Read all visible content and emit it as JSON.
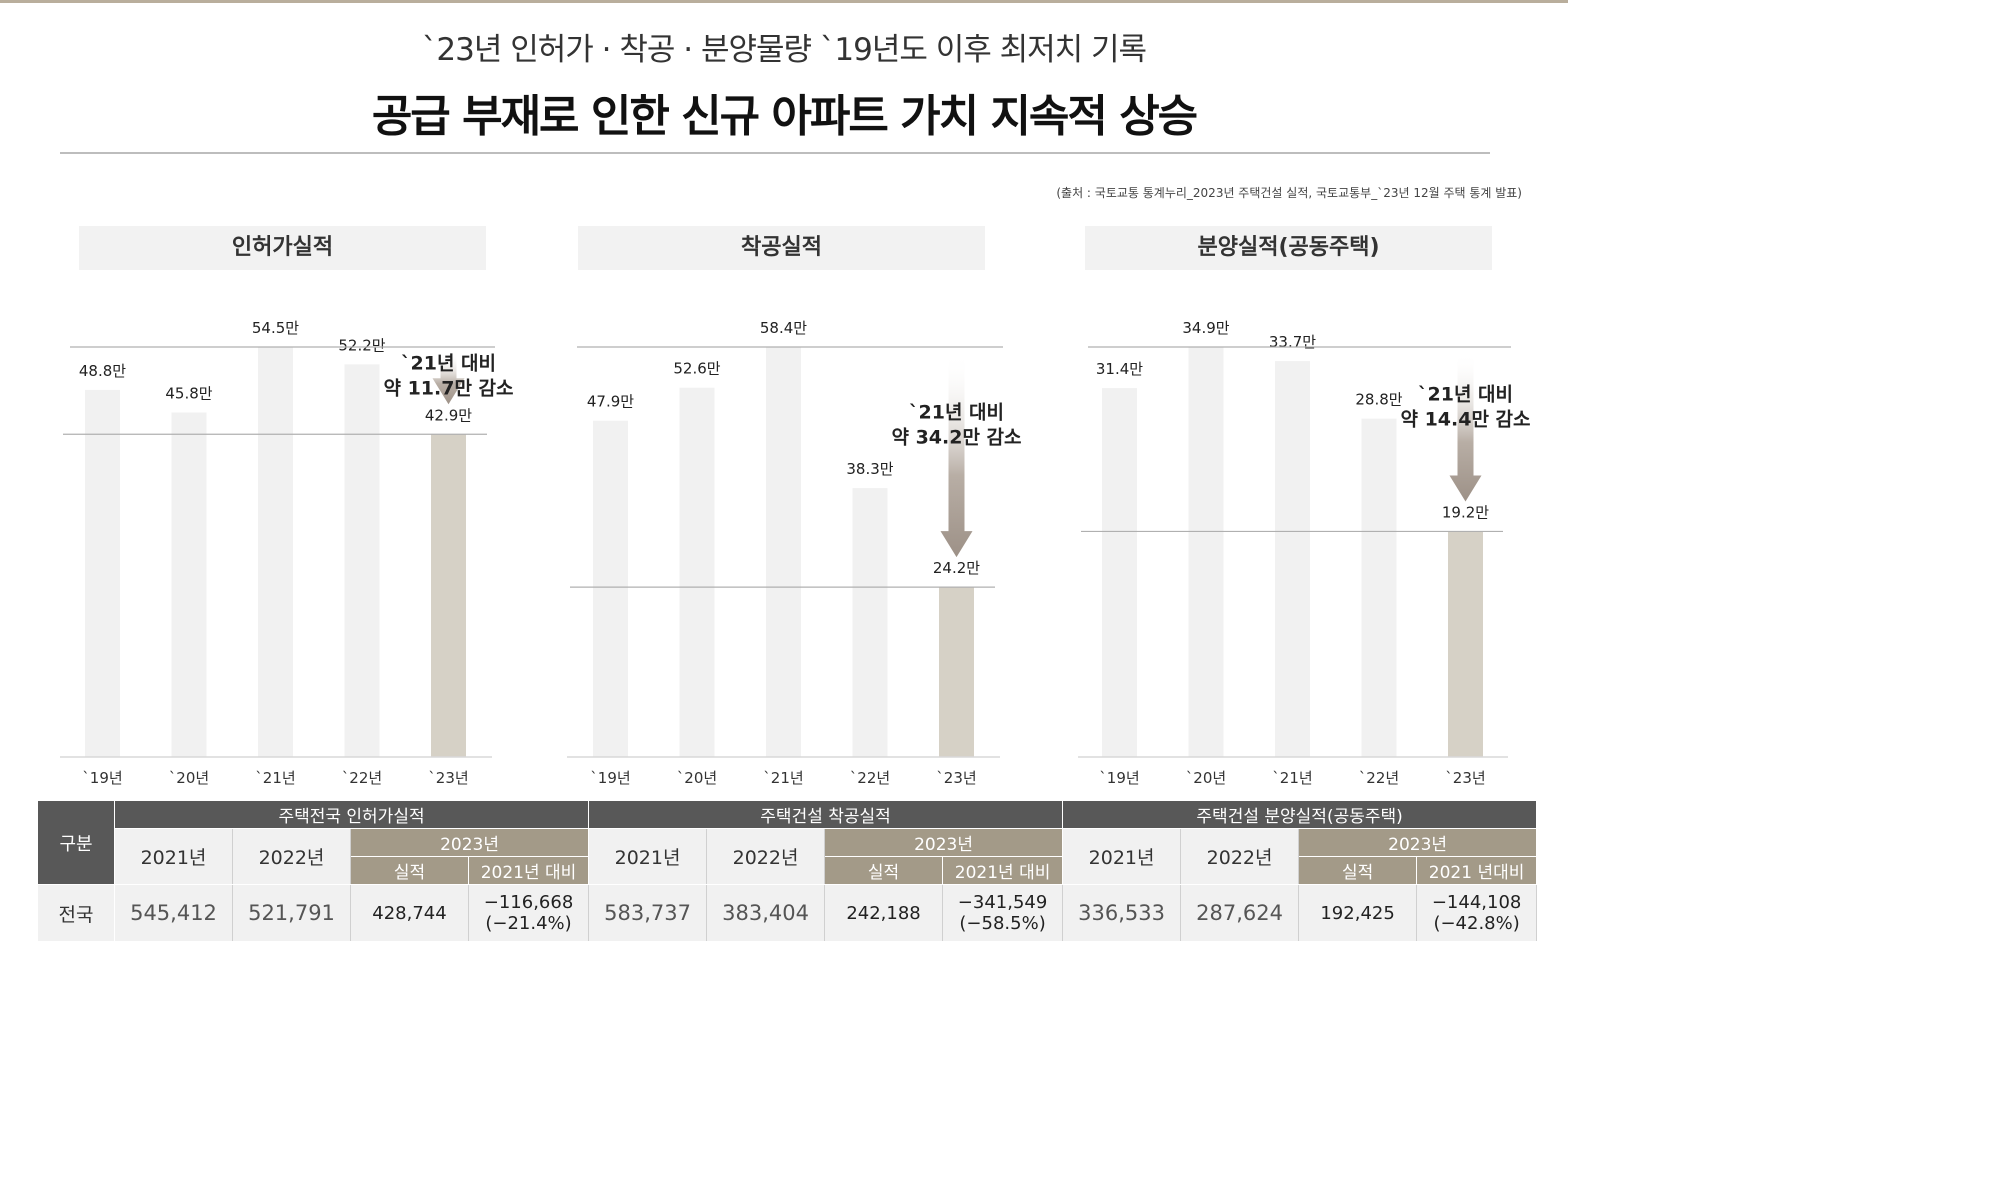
{
  "header": {
    "subtitle": "`23년 인허가 · 착공 · 분양물량 `19년도 이후 최저치 기록",
    "title": "공급 부재로 인한 신규 아파트 가치 지속적 상승",
    "source": "(출처 : 국토교통 통계누리_2023년 주택건설 실적, 국토교통부_`23년 12월 주택 통계 발표)"
  },
  "chart_data": [
    {
      "type": "bar",
      "title": "인허가실적",
      "categories": [
        "`19년",
        "`20년",
        "`21년",
        "`22년",
        "`23년"
      ],
      "values": [
        48.8,
        45.8,
        54.5,
        52.2,
        42.9
      ],
      "value_labels": [
        "48.8만",
        "45.8만",
        "54.5만",
        "52.2만",
        "42.9만"
      ],
      "unit": "만",
      "highlight_index": 4,
      "annotation": [
        "`21년 대비",
        "약 11.7만 감소"
      ],
      "ylim": [
        0,
        54.5
      ]
    },
    {
      "type": "bar",
      "title": "착공실적",
      "categories": [
        "`19년",
        "`20년",
        "`21년",
        "`22년",
        "`23년"
      ],
      "values": [
        47.9,
        52.6,
        58.4,
        38.3,
        24.2
      ],
      "value_labels": [
        "47.9만",
        "52.6만",
        "58.4만",
        "38.3만",
        "24.2만"
      ],
      "unit": "만",
      "highlight_index": 4,
      "annotation": [
        "`21년 대비",
        "약 34.2만 감소"
      ],
      "ylim": [
        0,
        58.4
      ]
    },
    {
      "type": "bar",
      "title": "분양실적(공동주택)",
      "categories": [
        "`19년",
        "`20년",
        "`21년",
        "`22년",
        "`23년"
      ],
      "values": [
        31.4,
        34.9,
        33.7,
        28.8,
        19.2
      ],
      "value_labels": [
        "31.4만",
        "34.9만",
        "33.7만",
        "28.8만",
        "19.2만"
      ],
      "unit": "만",
      "highlight_index": 4,
      "annotation": [
        "`21년 대비",
        "약 14.4만 감소"
      ],
      "ylim": [
        0,
        34.9
      ]
    }
  ],
  "table": {
    "row_header": "구분",
    "row_label": "전국",
    "groups": [
      {
        "title": "주택전국 인허가실적",
        "year1": "2021년",
        "year2": "2022년",
        "year3": "2023년",
        "sub1": "실적",
        "sub2": "2021년 대비",
        "v2021": "545,412",
        "v2022": "521,791",
        "v2023": "428,744",
        "diff": "−116,668",
        "diff_pct": "(−21.4%)"
      },
      {
        "title": "주택건설 착공실적",
        "year1": "2021년",
        "year2": "2022년",
        "year3": "2023년",
        "sub1": "실적",
        "sub2": "2021년 대비",
        "v2021": "583,737",
        "v2022": "383,404",
        "v2023": "242,188",
        "diff": "−341,549",
        "diff_pct": "(−58.5%)"
      },
      {
        "title": "주택건설 분양실적(공동주택)",
        "year1": "2021년",
        "year2": "2022년",
        "year3": "2023년",
        "sub1": "실적",
        "sub2": "2021 년대비",
        "v2021": "336,533",
        "v2022": "287,624",
        "v2023": "192,425",
        "diff": "−144,108",
        "diff_pct": "(−42.8%)"
      }
    ]
  },
  "colors": {
    "bar": "#f1f1f1",
    "highlight_bar": "#d6d1c6",
    "arrow": "#a0958b",
    "table_header": "#585858",
    "table_accent": "#a39a88"
  }
}
